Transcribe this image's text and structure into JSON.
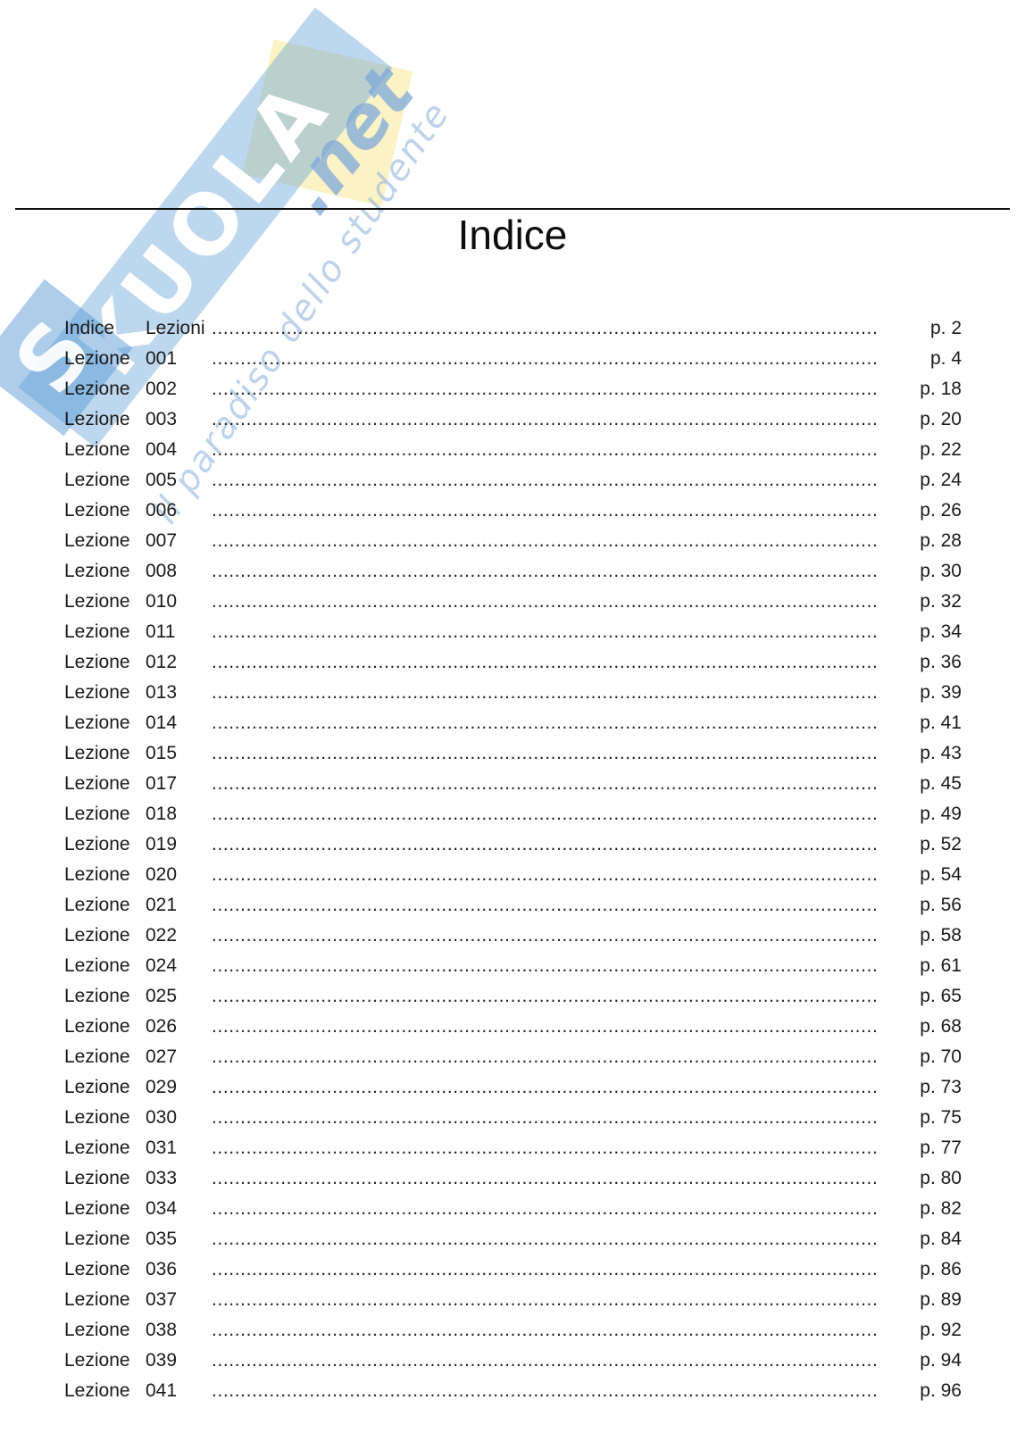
{
  "title": "Indice",
  "watermark": {
    "brand_s": "S",
    "brand_rest": "KUOLA",
    "brand_suffix": ".net",
    "tagline": "il paradiso dello studente",
    "colors": {
      "band_blue": "#c6d9ee",
      "s_tile_blue": "#a9c8e8",
      "pale_yellow": "#faf3c6",
      "script_blue": "#9dbfe3"
    }
  },
  "toc": {
    "leader_char": ".",
    "entries": [
      {
        "word1": "Indice",
        "word2": "Lezioni",
        "page": "p. 2"
      },
      {
        "word1": "Lezione",
        "word2": "001",
        "page": "p. 4"
      },
      {
        "word1": "Lezione",
        "word2": "002",
        "page": "p. 18"
      },
      {
        "word1": "Lezione",
        "word2": "003",
        "page": "p. 20"
      },
      {
        "word1": "Lezione",
        "word2": "004",
        "page": "p. 22"
      },
      {
        "word1": "Lezione",
        "word2": "005",
        "page": "p. 24"
      },
      {
        "word1": "Lezione",
        "word2": "006",
        "page": "p. 26"
      },
      {
        "word1": "Lezione",
        "word2": "007",
        "page": "p. 28"
      },
      {
        "word1": "Lezione",
        "word2": "008",
        "page": "p. 30"
      },
      {
        "word1": "Lezione",
        "word2": "010",
        "page": "p. 32"
      },
      {
        "word1": "Lezione",
        "word2": "011",
        "page": "p. 34"
      },
      {
        "word1": "Lezione",
        "word2": "012",
        "page": "p. 36"
      },
      {
        "word1": "Lezione",
        "word2": "013",
        "page": "p. 39"
      },
      {
        "word1": "Lezione",
        "word2": "014",
        "page": "p. 41"
      },
      {
        "word1": "Lezione",
        "word2": "015",
        "page": "p. 43"
      },
      {
        "word1": "Lezione",
        "word2": "017",
        "page": "p. 45"
      },
      {
        "word1": "Lezione",
        "word2": "018",
        "page": "p. 49"
      },
      {
        "word1": "Lezione",
        "word2": "019",
        "page": "p. 52"
      },
      {
        "word1": "Lezione",
        "word2": "020",
        "page": "p. 54"
      },
      {
        "word1": "Lezione",
        "word2": "021",
        "page": "p. 56"
      },
      {
        "word1": "Lezione",
        "word2": "022",
        "page": "p. 58"
      },
      {
        "word1": "Lezione",
        "word2": "024",
        "page": "p. 61"
      },
      {
        "word1": "Lezione",
        "word2": "025",
        "page": "p. 65"
      },
      {
        "word1": "Lezione",
        "word2": "026",
        "page": "p. 68"
      },
      {
        "word1": "Lezione",
        "word2": "027",
        "page": "p. 70"
      },
      {
        "word1": "Lezione",
        "word2": "029",
        "page": "p. 73"
      },
      {
        "word1": "Lezione",
        "word2": "030",
        "page": "p. 75"
      },
      {
        "word1": "Lezione",
        "word2": "031",
        "page": "p. 77"
      },
      {
        "word1": "Lezione",
        "word2": "033",
        "page": "p. 80"
      },
      {
        "word1": "Lezione",
        "word2": "034",
        "page": "p. 82"
      },
      {
        "word1": "Lezione",
        "word2": "035",
        "page": "p. 84"
      },
      {
        "word1": "Lezione",
        "word2": "036",
        "page": "p. 86"
      },
      {
        "word1": "Lezione",
        "word2": "037",
        "page": "p. 89"
      },
      {
        "word1": "Lezione",
        "word2": "038",
        "page": "p. 92"
      },
      {
        "word1": "Lezione",
        "word2": "039",
        "page": "p. 94"
      },
      {
        "word1": "Lezione",
        "word2": "041",
        "page": "p. 96"
      }
    ]
  }
}
